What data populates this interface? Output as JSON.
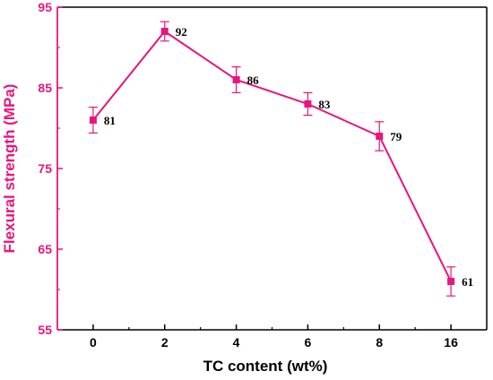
{
  "chart_data": {
    "type": "line",
    "categories": [
      "0",
      "2",
      "4",
      "6",
      "8",
      "16"
    ],
    "series": [
      {
        "values": [
          81,
          92,
          86,
          83,
          79,
          61
        ],
        "errors": [
          1.6,
          1.2,
          1.6,
          1.4,
          1.8,
          1.8
        ],
        "data_labels": [
          "81",
          "92",
          "86",
          "83",
          "79",
          "61"
        ]
      }
    ],
    "xlabel": "TC content (wt%)",
    "ylabel": "Flexural strength (MPa)",
    "ylim": [
      55,
      95
    ],
    "yticks": [
      55,
      65,
      75,
      85,
      95
    ],
    "ytick_labels": [
      "55",
      "65",
      "75",
      "85",
      "95"
    ],
    "grid": false,
    "marker": "square",
    "colors": {
      "series": "#e8157f",
      "y_axis": "#e8157f",
      "x_axis": "#000000"
    }
  }
}
